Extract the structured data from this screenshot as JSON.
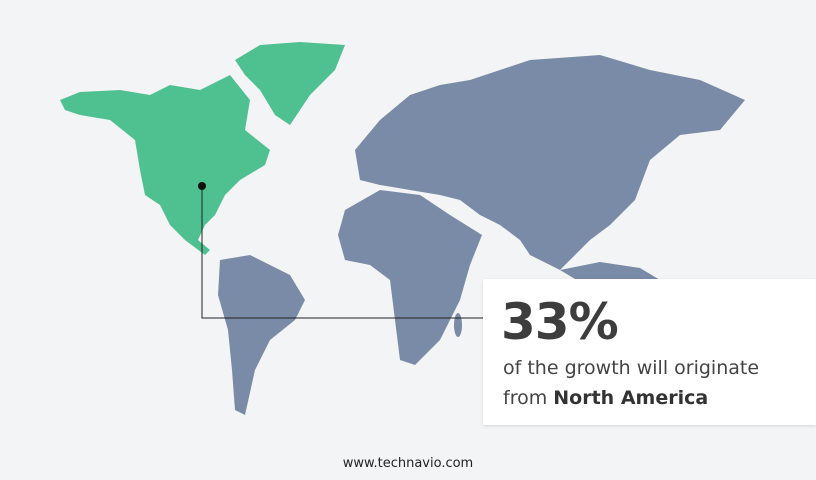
{
  "colors": {
    "highlight": "#4fc08f",
    "other_regions": "#7a8ba7",
    "background": "#f3f4f6"
  },
  "highlighted_region": "North America",
  "callout": {
    "percentage": "33%",
    "text_line1": "of the growth will originate",
    "text_prefix": "from",
    "region": "North America"
  },
  "footer": {
    "website": "www.technavio.com"
  }
}
